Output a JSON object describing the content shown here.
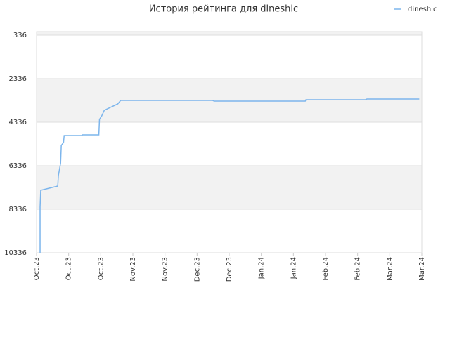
{
  "chart_data": {
    "type": "line",
    "title": "История рейтинга для dineshlc",
    "x": [
      0.11,
      0.11,
      0.13,
      0.66,
      0.68,
      0.75,
      0.77,
      0.84,
      0.86,
      1.41,
      1.43,
      1.94,
      1.96,
      2.03,
      2.11,
      2.53,
      2.62,
      5.48,
      5.53,
      8.37,
      8.39,
      10.24,
      10.29,
      11.92
    ],
    "series": [
      {
        "name": "dineshlc",
        "color": "#7cb5ec",
        "values": [
          10336,
          8240,
          7466,
          7272,
          6788,
          6207,
          5401,
          5272,
          4949,
          4949,
          4917,
          4917,
          4207,
          4046,
          3788,
          3497,
          3336,
          3336,
          3369,
          3369,
          3304,
          3304,
          3272,
          3272
        ]
      }
    ],
    "xlim": [
      0,
      12
    ],
    "xticks": [
      {
        "value": 0,
        "label": "Oct.23"
      },
      {
        "value": 1,
        "label": "Oct.23"
      },
      {
        "value": 2,
        "label": "Oct.23"
      },
      {
        "value": 3,
        "label": "Nov.23"
      },
      {
        "value": 4,
        "label": "Nov.23"
      },
      {
        "value": 5,
        "label": "Dec.23"
      },
      {
        "value": 6,
        "label": "Dec.23"
      },
      {
        "value": 7,
        "label": "Jan.24"
      },
      {
        "value": 8,
        "label": "Jan.24"
      },
      {
        "value": 9,
        "label": "Feb.24"
      },
      {
        "value": 10,
        "label": "Feb.24"
      },
      {
        "value": 11,
        "label": "Mar.24"
      },
      {
        "value": 12,
        "label": "Mar.24"
      }
    ],
    "ylim": [
      10336,
      175
    ],
    "yticks": [
      336,
      2336,
      4336,
      6336,
      8336,
      10336
    ],
    "grid": true,
    "legend": "top-right"
  }
}
